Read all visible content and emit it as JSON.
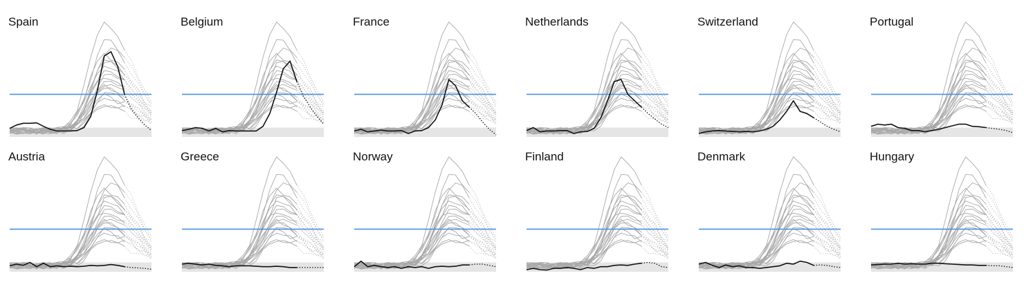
{
  "chart_data": {
    "type": "line",
    "x_points": 22,
    "solid_points": 18,
    "threshold": 100,
    "ylim": [
      -8,
      250
    ],
    "grid": false,
    "colors": {
      "highlight": "#111111",
      "background_series": "#a9a9a9",
      "threshold": "#4a90e2",
      "baseline_band": "#d0d0d0"
    },
    "background_peaks": [
      250,
      212,
      190,
      178,
      168,
      160,
      150,
      142,
      135,
      128,
      120,
      112,
      104,
      96,
      88,
      80,
      72,
      64,
      56
    ],
    "panels": [
      {
        "title": "Spain",
        "values": [
          20,
          28,
          32,
          32,
          33,
          25,
          18,
          14,
          14,
          14,
          15,
          22,
          48,
          110,
          190,
          200,
          165,
          100,
          65,
          45,
          28,
          15
        ]
      },
      {
        "title": "Belgium",
        "values": [
          15,
          18,
          22,
          20,
          14,
          20,
          12,
          15,
          14,
          14,
          14,
          14,
          25,
          55,
          105,
          160,
          178,
          130,
          95,
          70,
          48,
          30
        ]
      },
      {
        "title": "France",
        "values": [
          14,
          18,
          12,
          14,
          16,
          14,
          14,
          15,
          8,
          14,
          15,
          22,
          40,
          75,
          135,
          120,
          85,
          70,
          55,
          35,
          18,
          5
        ]
      },
      {
        "title": "Netherlands",
        "values": [
          15,
          22,
          12,
          14,
          14,
          15,
          15,
          8,
          12,
          13,
          20,
          45,
          85,
          130,
          135,
          100,
          85,
          70,
          55,
          42,
          30,
          22
        ]
      },
      {
        "title": "Switzerland",
        "values": [
          8,
          12,
          14,
          15,
          14,
          13,
          12,
          13,
          12,
          14,
          18,
          25,
          40,
          60,
          85,
          60,
          55,
          45,
          35,
          25,
          18,
          12
        ]
      },
      {
        "title": "Portugal",
        "values": [
          25,
          30,
          28,
          30,
          22,
          20,
          15,
          15,
          12,
          15,
          18,
          22,
          26,
          30,
          30,
          25,
          24,
          22,
          20,
          18,
          15,
          10
        ]
      },
      {
        "title": "Austria",
        "values": [
          14,
          18,
          15,
          22,
          12,
          20,
          12,
          14,
          12,
          13,
          12,
          13,
          15,
          14,
          15,
          17,
          15,
          12,
          10,
          9,
          8,
          6
        ]
      },
      {
        "title": "Greece",
        "values": [
          18,
          20,
          18,
          16,
          18,
          15,
          14,
          12,
          14,
          14,
          14,
          13,
          12,
          12,
          13,
          12,
          10,
          10,
          10,
          10,
          10,
          10
        ]
      },
      {
        "title": "Norway",
        "values": [
          12,
          25,
          12,
          15,
          12,
          10,
          12,
          8,
          12,
          10,
          12,
          8,
          12,
          13,
          12,
          13,
          16,
          16,
          18,
          18,
          15,
          12
        ]
      },
      {
        "title": "Finland",
        "values": [
          5,
          8,
          5,
          4,
          8,
          8,
          10,
          8,
          5,
          10,
          8,
          12,
          12,
          15,
          16,
          15,
          18,
          20,
          22,
          20,
          12,
          10
        ]
      },
      {
        "title": "Denmark",
        "values": [
          18,
          22,
          15,
          10,
          16,
          12,
          14,
          10,
          10,
          8,
          10,
          12,
          14,
          20,
          18,
          25,
          22,
          15,
          16,
          15,
          12,
          10
        ]
      },
      {
        "title": "Hungary",
        "values": [
          16,
          17,
          18,
          18,
          20,
          18,
          19,
          18,
          18,
          20,
          20,
          19,
          18,
          17,
          16,
          16,
          15,
          15,
          14,
          14,
          12,
          10
        ]
      }
    ]
  }
}
